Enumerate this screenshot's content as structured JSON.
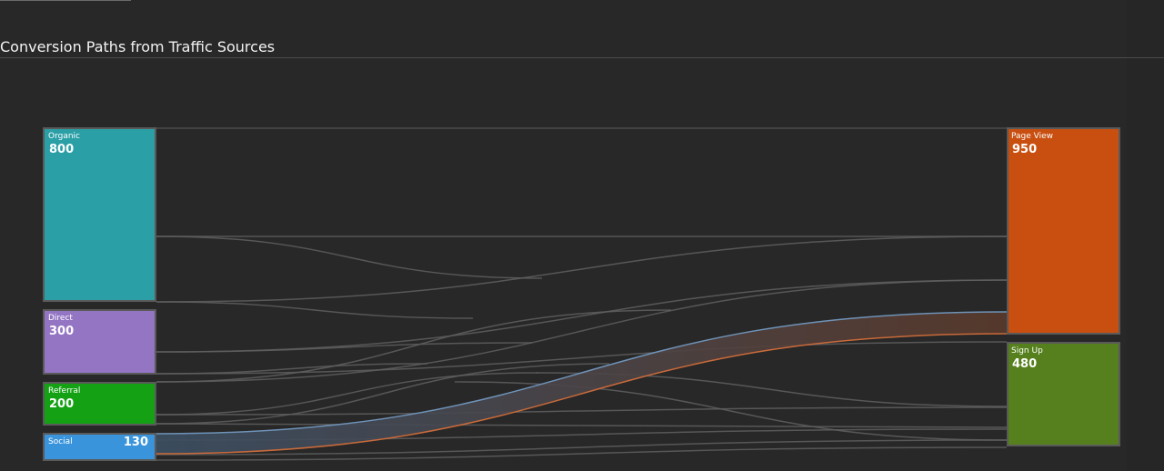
{
  "chart_data": {
    "type": "sankey",
    "title": "Conversion Paths from Traffic Sources",
    "sources": [
      {
        "id": "organic",
        "name": "Organic",
        "value": 800,
        "color": "#2a9fa6"
      },
      {
        "id": "direct",
        "name": "Direct",
        "value": 300,
        "color": "#9475c4"
      },
      {
        "id": "referral",
        "name": "Referral",
        "value": 200,
        "color": "#14a214"
      },
      {
        "id": "social",
        "name": "Social",
        "value": 130,
        "color": "#3a94dc"
      }
    ],
    "targets": [
      {
        "id": "pageview",
        "name": "Page View",
        "value": 950,
        "color": "#c84f10"
      },
      {
        "id": "signup",
        "name": "Sign Up",
        "value": 480,
        "color": "#55801d"
      }
    ],
    "highlight_colors": {
      "source_edge": "#6f93b8",
      "target_edge": "#c96a3a",
      "band_fill": "#5a4a45"
    },
    "highlight_flow": {
      "from": "social",
      "to": "pageview"
    }
  }
}
